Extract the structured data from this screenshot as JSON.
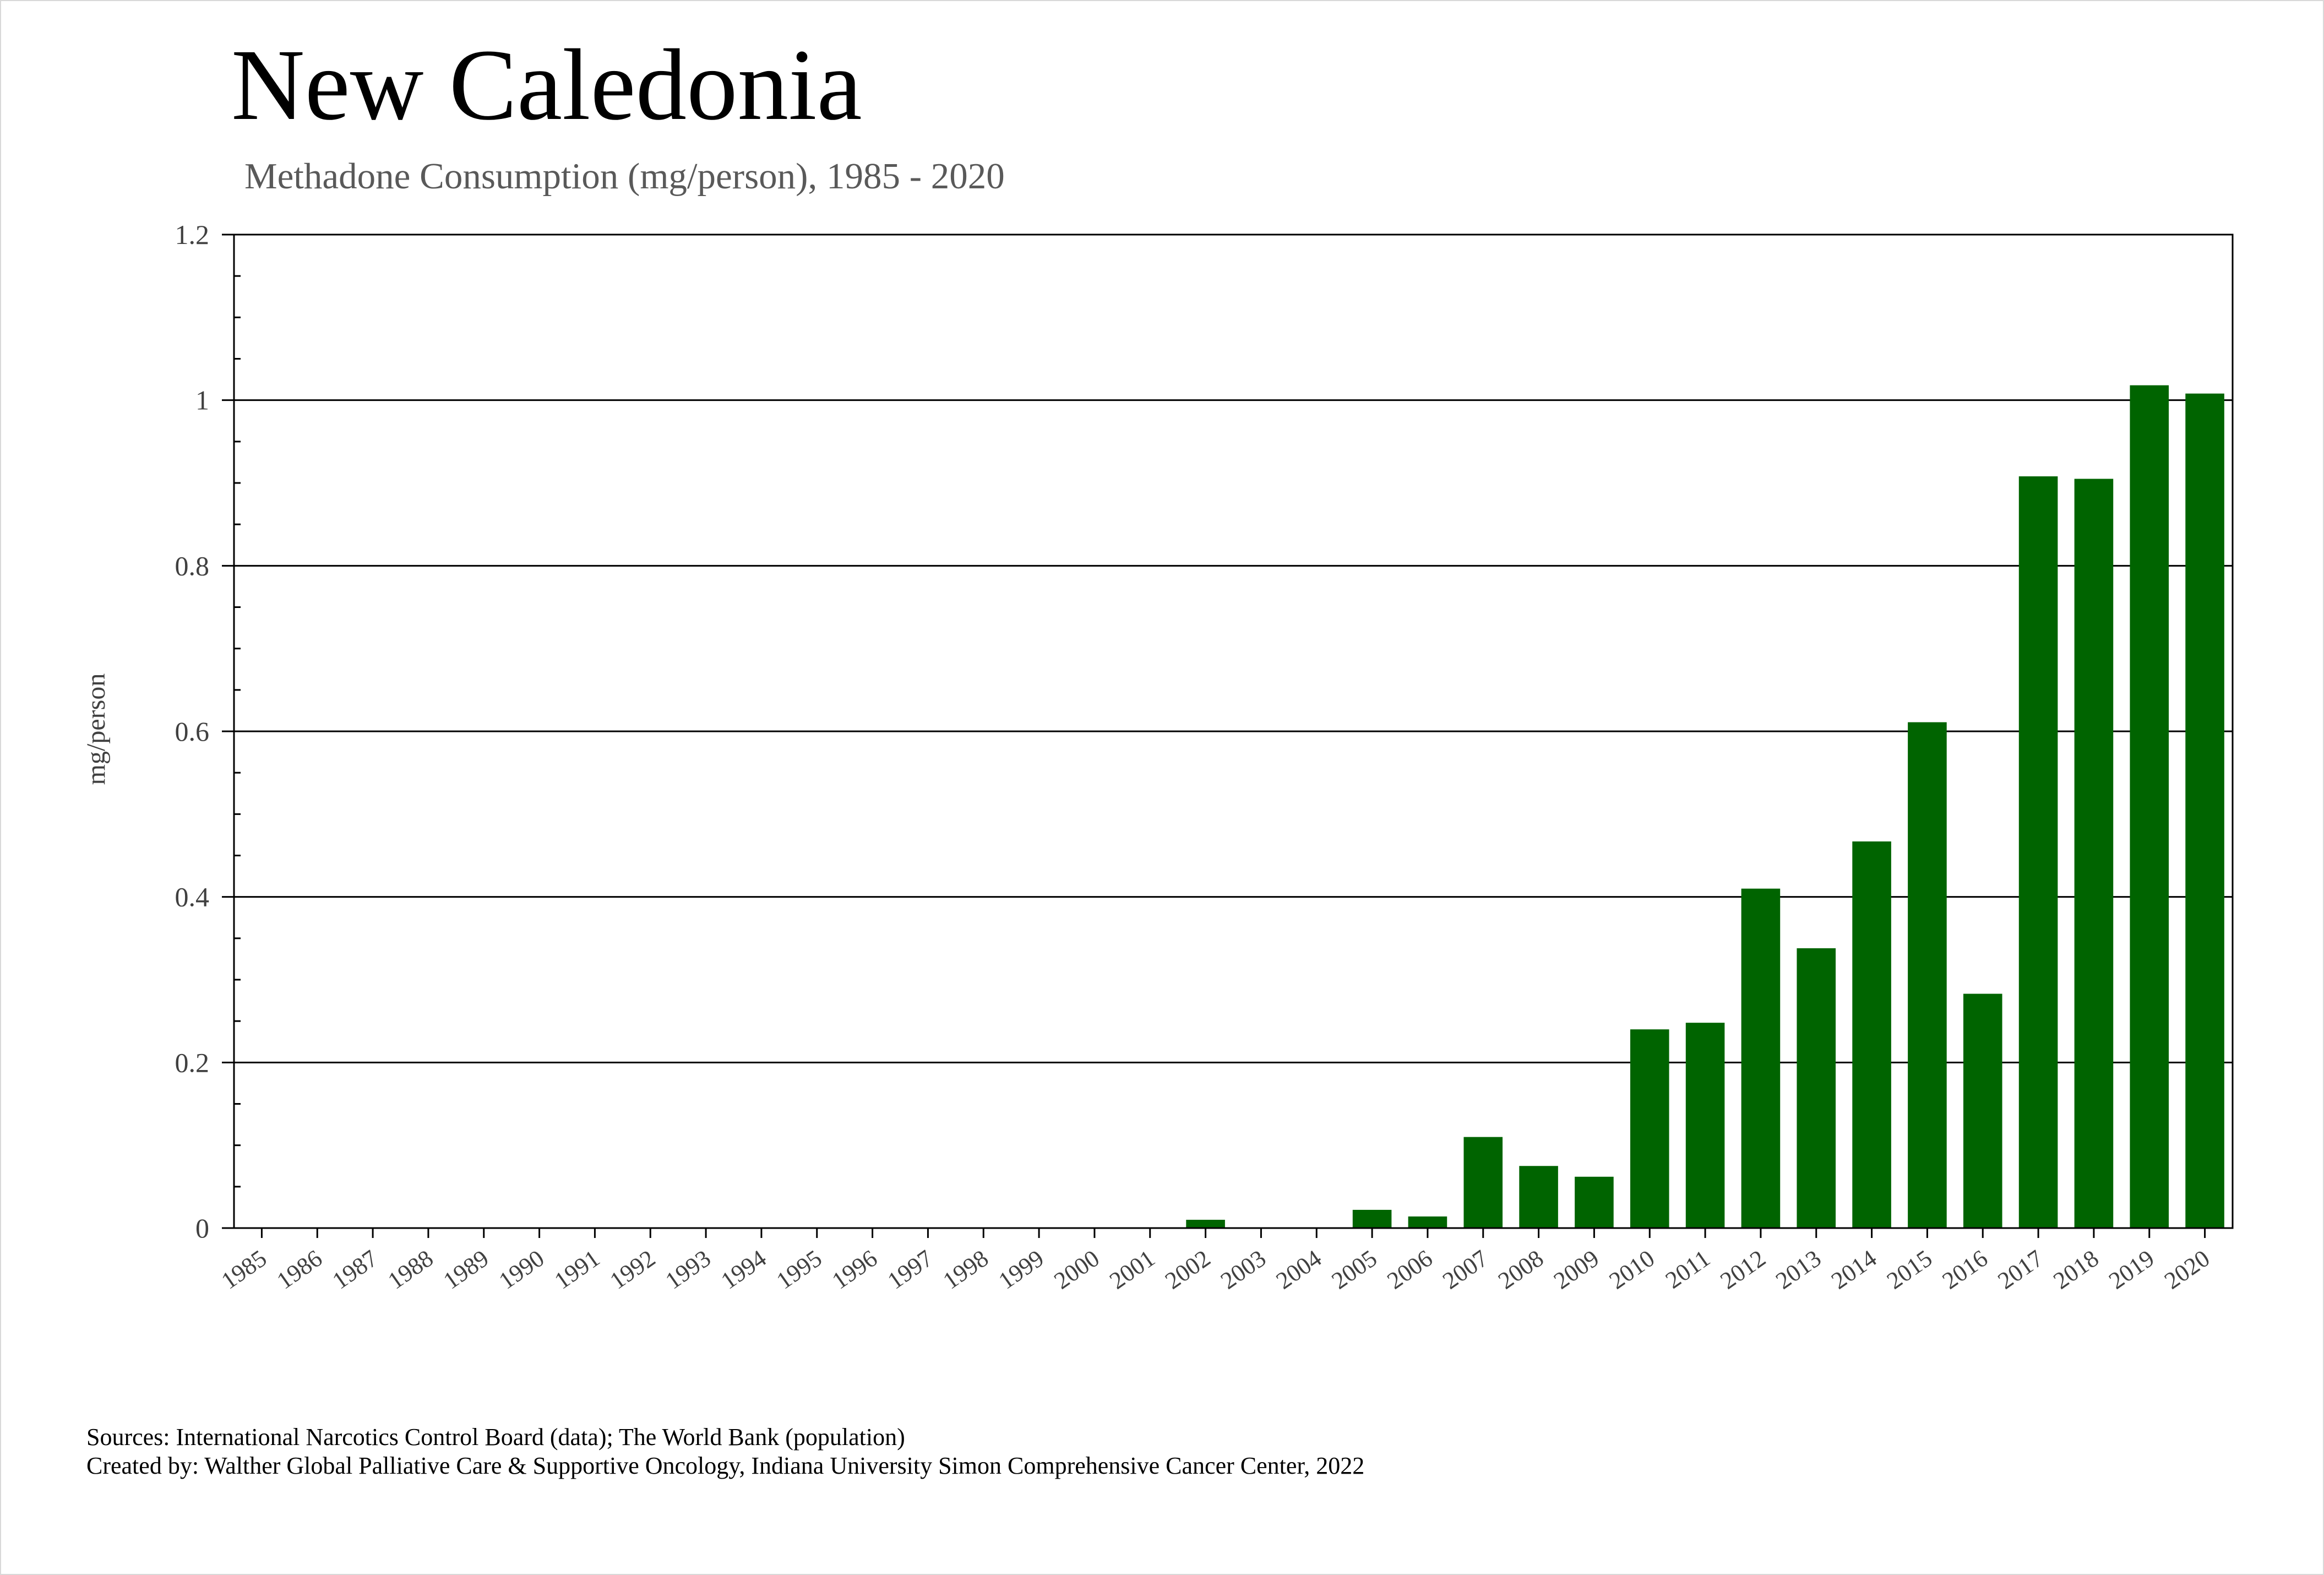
{
  "title": "New Caledonia",
  "subtitle": "Methadone Consumption (mg/person), 1985 - 2020",
  "footer": {
    "sources": "Sources: International Narcotics Control Board (data); The World Bank (population)",
    "created_by": "Created by: Walther Global Palliative Care & Supportive Oncology, Indiana University Simon Comprehensive Cancer Center, 2022"
  },
  "colors": {
    "bar": "#006400",
    "grid": "#000000",
    "text": "#404040"
  },
  "chart_data": {
    "type": "bar",
    "title": "New Caledonia",
    "subtitle": "Methadone Consumption (mg/person), 1985 - 2020",
    "xlabel": "",
    "ylabel": "mg/person",
    "ylim": [
      0,
      1.2
    ],
    "yticks": [
      0,
      0.2,
      0.4,
      0.6,
      0.8,
      1,
      1.2
    ],
    "ytick_labels": [
      "0",
      "0.2",
      "0.4",
      "0.6",
      "0.8",
      "1",
      "1.2"
    ],
    "grid": true,
    "legend": "none",
    "categories": [
      "1985",
      "1986",
      "1987",
      "1988",
      "1989",
      "1990",
      "1991",
      "1992",
      "1993",
      "1994",
      "1995",
      "1996",
      "1997",
      "1998",
      "1999",
      "2000",
      "2001",
      "2002",
      "2003",
      "2004",
      "2005",
      "2006",
      "2007",
      "2008",
      "2009",
      "2010",
      "2011",
      "2012",
      "2013",
      "2014",
      "2015",
      "2016",
      "2017",
      "2018",
      "2019",
      "2020"
    ],
    "values": [
      0,
      0,
      0,
      0,
      0,
      0,
      0,
      0,
      0,
      0,
      0,
      0,
      0,
      0,
      0,
      0,
      0,
      0.01,
      0,
      0,
      0.022,
      0.014,
      0.11,
      0.075,
      0.062,
      0.24,
      0.248,
      0.41,
      0.338,
      0.467,
      0.611,
      0.283,
      0.908,
      0.905,
      1.018,
      1.008
    ]
  }
}
